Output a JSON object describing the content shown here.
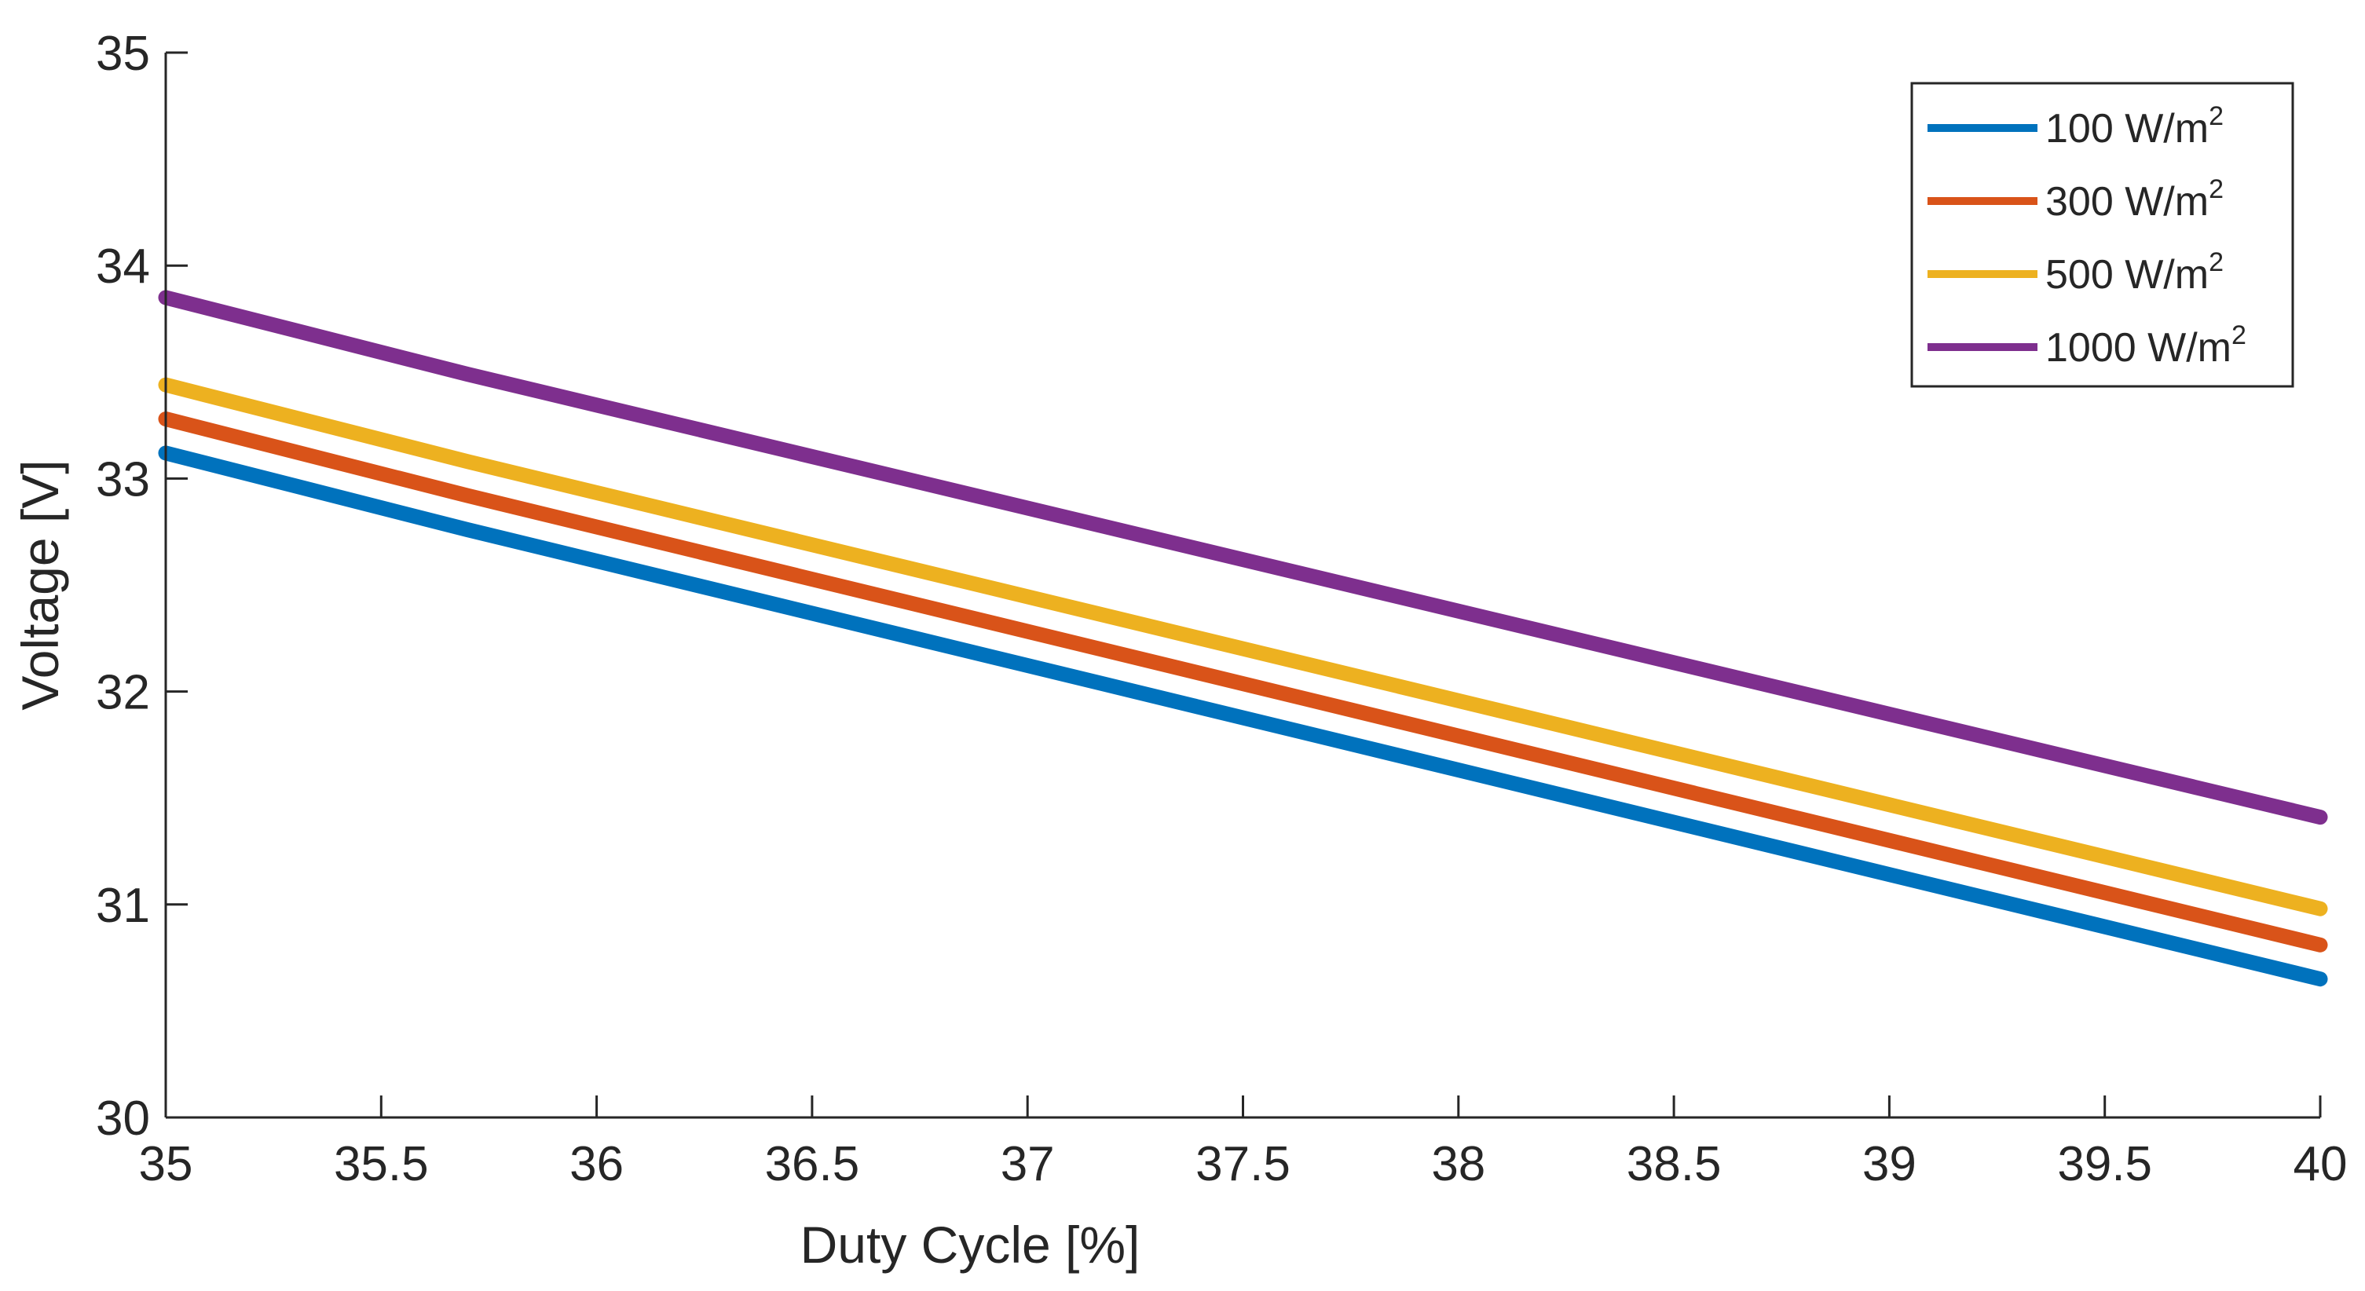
{
  "chart_data": {
    "type": "line",
    "title": "",
    "xlabel": "Duty Cycle [%]",
    "ylabel": "Voltage [V]",
    "xlim": [
      35,
      40
    ],
    "ylim": [
      30,
      35
    ],
    "xticks": [
      35,
      35.5,
      36,
      36.5,
      37,
      37.5,
      38,
      38.5,
      39,
      39.5,
      40
    ],
    "xtick_labels": [
      "35",
      "35.5",
      "36",
      "36.5",
      "37",
      "37.5",
      "38",
      "38.5",
      "39",
      "39.5",
      "40"
    ],
    "yticks": [
      30,
      31,
      32,
      33,
      34,
      35
    ],
    "ytick_labels": [
      "30",
      "31",
      "32",
      "33",
      "34",
      "35"
    ],
    "grid": false,
    "legend_position": "top-right",
    "series": [
      {
        "name": "100 W/m2",
        "legend_base": "100 W/m",
        "legend_sup": "2",
        "color": "#0072BD",
        "x": [
          35,
          35.7,
          40
        ],
        "y": [
          33.12,
          32.76,
          30.65
        ]
      },
      {
        "name": "300 W/m2",
        "legend_base": "300 W/m",
        "legend_sup": "2",
        "color": "#D95319",
        "x": [
          35,
          35.7,
          40
        ],
        "y": [
          33.28,
          32.92,
          30.81
        ]
      },
      {
        "name": "500 W/m2",
        "legend_base": "500 W/m",
        "legend_sup": "2",
        "color": "#EDB120",
        "x": [
          35,
          35.7,
          40
        ],
        "y": [
          33.44,
          33.08,
          30.98
        ]
      },
      {
        "name": "1000 W/m2",
        "legend_base": "1000 W/m",
        "legend_sup": "2",
        "color": "#7E2F8E",
        "x": [
          35,
          35.7,
          40
        ],
        "y": [
          33.85,
          33.49,
          31.41
        ]
      }
    ]
  }
}
